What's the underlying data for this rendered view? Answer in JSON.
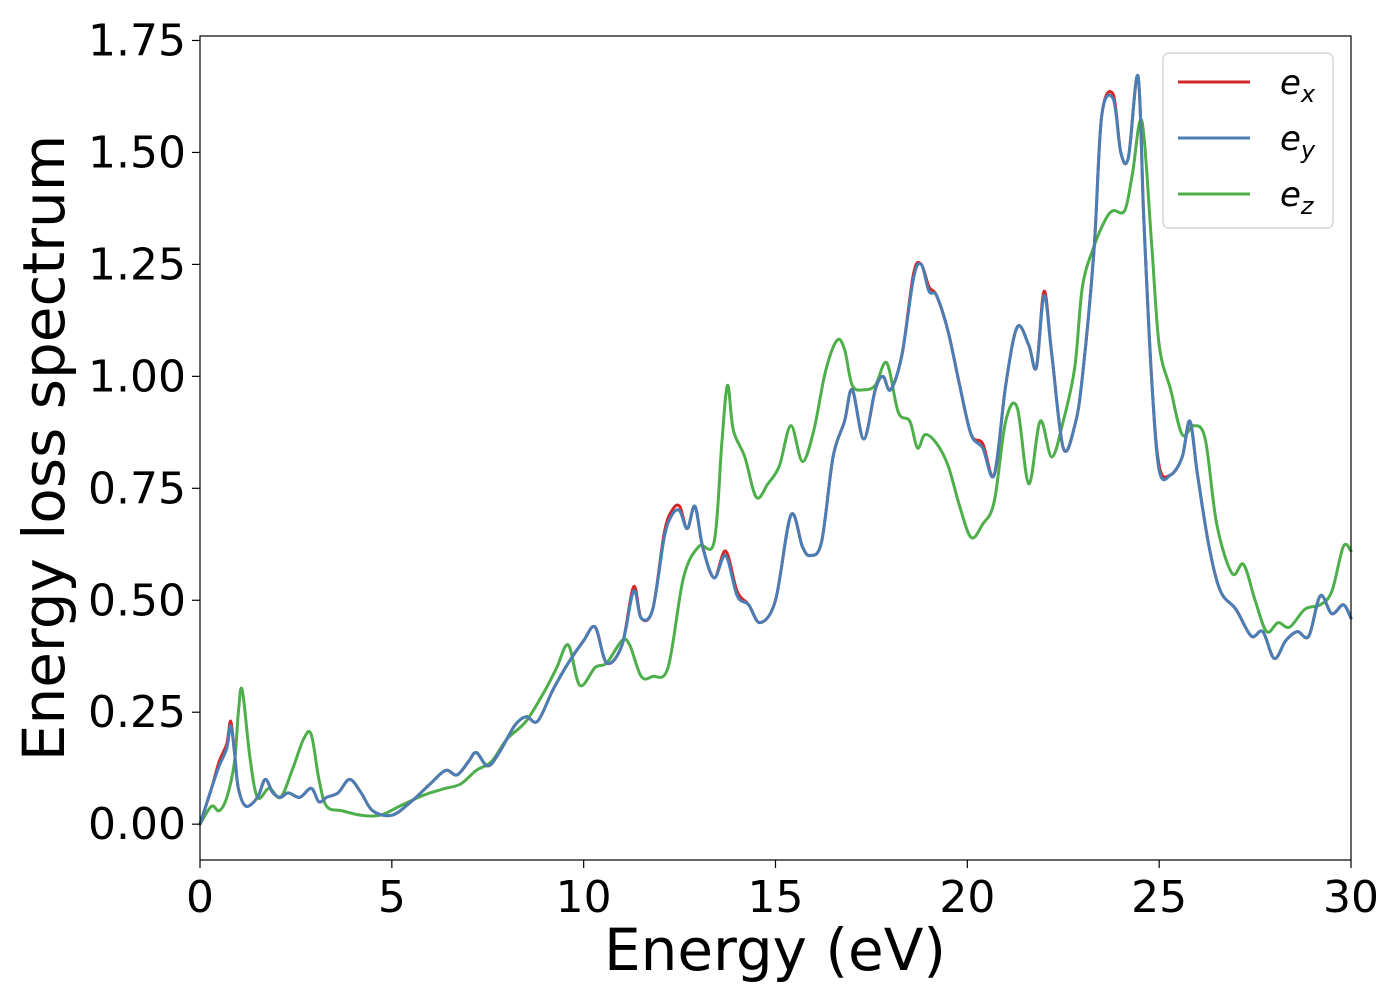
{
  "chart_data": {
    "type": "line",
    "xlabel": "Energy (eV)",
    "ylabel": "Energy loss spectrum",
    "xlim": [
      0,
      30
    ],
    "ylim": [
      -0.08,
      1.76
    ],
    "xticks": [
      0,
      5,
      10,
      15,
      20,
      25,
      30
    ],
    "yticks": [
      0.0,
      0.25,
      0.5,
      0.75,
      1.0,
      1.25,
      1.5,
      1.75
    ],
    "xtick_labels": [
      "0",
      "5",
      "10",
      "15",
      "20",
      "25",
      "30"
    ],
    "ytick_labels": [
      "0.00",
      "0.25",
      "0.50",
      "0.75",
      "1.00",
      "1.25",
      "1.50",
      "1.75"
    ],
    "grid": false,
    "legend_position": "top-right",
    "series": [
      {
        "name": "e_x",
        "label_main": "e",
        "label_sub": "x",
        "color": "#d62728",
        "x": [
          0,
          0.3,
          0.5,
          0.7,
          0.8,
          0.9,
          1.0,
          1.2,
          1.5,
          1.7,
          1.9,
          2.1,
          2.3,
          2.6,
          2.9,
          3.1,
          3.3,
          3.6,
          3.9,
          4.2,
          4.5,
          5.0,
          5.5,
          6.0,
          6.4,
          6.7,
          7.0,
          7.2,
          7.5,
          7.8,
          8.2,
          8.5,
          8.8,
          9.2,
          9.6,
          10.0,
          10.3,
          10.6,
          11.0,
          11.3,
          11.5,
          11.8,
          12.1,
          12.3,
          12.5,
          12.7,
          12.9,
          13.1,
          13.4,
          13.7,
          14.0,
          14.3,
          14.6,
          15.0,
          15.4,
          15.7,
          15.9,
          16.2,
          16.5,
          16.8,
          17.0,
          17.3,
          17.6,
          17.8,
          18.0,
          18.3,
          18.6,
          18.8,
          19.0,
          19.2,
          19.5,
          19.8,
          20.1,
          20.4,
          20.7,
          21.0,
          21.3,
          21.6,
          21.8,
          22.0,
          22.2,
          22.5,
          22.8,
          23.0,
          23.3,
          23.5,
          23.8,
          24.0,
          24.2,
          24.45,
          24.6,
          24.8,
          25.0,
          25.3,
          25.6,
          25.8,
          26.0,
          26.3,
          26.6,
          27.0,
          27.4,
          27.7,
          28.0,
          28.3,
          28.6,
          28.9,
          29.2,
          29.5,
          29.8,
          30.0
        ],
        "y": [
          0.0,
          0.08,
          0.14,
          0.18,
          0.23,
          0.16,
          0.08,
          0.04,
          0.06,
          0.1,
          0.07,
          0.06,
          0.07,
          0.06,
          0.08,
          0.05,
          0.06,
          0.07,
          0.1,
          0.07,
          0.03,
          0.02,
          0.05,
          0.09,
          0.12,
          0.11,
          0.14,
          0.16,
          0.13,
          0.16,
          0.22,
          0.24,
          0.23,
          0.3,
          0.36,
          0.41,
          0.44,
          0.36,
          0.4,
          0.53,
          0.46,
          0.48,
          0.65,
          0.7,
          0.71,
          0.66,
          0.71,
          0.62,
          0.55,
          0.61,
          0.52,
          0.49,
          0.45,
          0.5,
          0.69,
          0.62,
          0.6,
          0.63,
          0.82,
          0.9,
          0.97,
          0.86,
          0.97,
          1.0,
          0.97,
          1.05,
          1.23,
          1.25,
          1.2,
          1.18,
          1.1,
          0.98,
          0.87,
          0.85,
          0.78,
          0.98,
          1.11,
          1.07,
          1.02,
          1.19,
          1.05,
          0.84,
          0.89,
          1.0,
          1.28,
          1.58,
          1.63,
          1.5,
          1.49,
          1.67,
          1.35,
          1.0,
          0.8,
          0.78,
          0.82,
          0.9,
          0.78,
          0.62,
          0.52,
          0.48,
          0.42,
          0.43,
          0.37,
          0.41,
          0.43,
          0.42,
          0.51,
          0.47,
          0.49,
          0.46
        ]
      },
      {
        "name": "e_y",
        "label_main": "e",
        "label_sub": "y",
        "color": "#4a7fb5",
        "x": [
          0,
          0.3,
          0.5,
          0.7,
          0.8,
          0.9,
          1.0,
          1.2,
          1.5,
          1.7,
          1.9,
          2.1,
          2.3,
          2.6,
          2.9,
          3.1,
          3.3,
          3.6,
          3.9,
          4.2,
          4.5,
          5.0,
          5.5,
          6.0,
          6.4,
          6.7,
          7.0,
          7.2,
          7.5,
          7.8,
          8.2,
          8.5,
          8.8,
          9.2,
          9.6,
          10.0,
          10.3,
          10.6,
          11.0,
          11.3,
          11.5,
          11.8,
          12.1,
          12.3,
          12.5,
          12.7,
          12.9,
          13.1,
          13.4,
          13.7,
          14.0,
          14.3,
          14.6,
          15.0,
          15.4,
          15.7,
          15.9,
          16.2,
          16.5,
          16.8,
          17.0,
          17.3,
          17.6,
          17.8,
          18.0,
          18.3,
          18.6,
          18.8,
          19.0,
          19.2,
          19.5,
          19.8,
          20.1,
          20.4,
          20.7,
          21.0,
          21.3,
          21.6,
          21.8,
          22.0,
          22.2,
          22.5,
          22.8,
          23.0,
          23.3,
          23.5,
          23.8,
          24.0,
          24.2,
          24.45,
          24.6,
          24.8,
          25.0,
          25.3,
          25.6,
          25.8,
          26.0,
          26.3,
          26.6,
          27.0,
          27.4,
          27.7,
          28.0,
          28.3,
          28.6,
          28.9,
          29.2,
          29.5,
          29.8,
          30.0
        ],
        "y": [
          0.0,
          0.08,
          0.13,
          0.17,
          0.22,
          0.16,
          0.08,
          0.04,
          0.06,
          0.1,
          0.07,
          0.06,
          0.07,
          0.06,
          0.08,
          0.05,
          0.06,
          0.07,
          0.1,
          0.07,
          0.03,
          0.02,
          0.05,
          0.09,
          0.12,
          0.11,
          0.14,
          0.16,
          0.13,
          0.16,
          0.22,
          0.24,
          0.23,
          0.3,
          0.36,
          0.41,
          0.44,
          0.36,
          0.4,
          0.52,
          0.46,
          0.48,
          0.64,
          0.69,
          0.7,
          0.66,
          0.71,
          0.62,
          0.55,
          0.6,
          0.51,
          0.49,
          0.45,
          0.5,
          0.69,
          0.62,
          0.6,
          0.63,
          0.82,
          0.9,
          0.97,
          0.86,
          0.97,
          1.0,
          0.97,
          1.05,
          1.22,
          1.25,
          1.19,
          1.18,
          1.1,
          0.98,
          0.87,
          0.84,
          0.78,
          0.98,
          1.11,
          1.07,
          1.02,
          1.18,
          1.05,
          0.84,
          0.89,
          1.0,
          1.28,
          1.58,
          1.62,
          1.5,
          1.49,
          1.67,
          1.35,
          1.0,
          0.79,
          0.78,
          0.82,
          0.9,
          0.78,
          0.62,
          0.52,
          0.48,
          0.42,
          0.43,
          0.37,
          0.41,
          0.43,
          0.42,
          0.51,
          0.47,
          0.49,
          0.46
        ]
      },
      {
        "name": "e_z",
        "label_main": "e",
        "label_sub": "z",
        "color": "#4daf4a",
        "x": [
          0,
          0.3,
          0.5,
          0.7,
          0.9,
          1.0,
          1.1,
          1.3,
          1.5,
          1.8,
          2.1,
          2.4,
          2.7,
          2.9,
          3.1,
          3.3,
          3.7,
          4.2,
          4.7,
          5.2,
          5.7,
          6.0,
          6.4,
          6.8,
          7.2,
          7.6,
          8.0,
          8.5,
          9.0,
          9.3,
          9.6,
          9.9,
          10.3,
          10.6,
          11.0,
          11.2,
          11.5,
          11.8,
          12.2,
          12.6,
          13.0,
          13.4,
          13.6,
          13.75,
          13.9,
          14.2,
          14.5,
          14.8,
          15.1,
          15.4,
          15.7,
          16.0,
          16.3,
          16.6,
          16.8,
          17.0,
          17.3,
          17.6,
          17.9,
          18.2,
          18.5,
          18.7,
          18.9,
          19.2,
          19.5,
          19.8,
          20.1,
          20.4,
          20.7,
          21.0,
          21.3,
          21.6,
          21.9,
          22.2,
          22.5,
          22.8,
          23.0,
          23.3,
          23.6,
          23.8,
          24.1,
          24.3,
          24.55,
          24.8,
          25.0,
          25.3,
          25.6,
          25.9,
          26.2,
          26.5,
          26.9,
          27.2,
          27.5,
          27.8,
          28.1,
          28.4,
          28.8,
          29.2,
          29.5,
          29.8,
          30.0
        ],
        "y": [
          0.0,
          0.04,
          0.03,
          0.06,
          0.14,
          0.25,
          0.3,
          0.15,
          0.06,
          0.08,
          0.06,
          0.12,
          0.19,
          0.2,
          0.1,
          0.04,
          0.03,
          0.02,
          0.02,
          0.04,
          0.06,
          0.07,
          0.08,
          0.09,
          0.12,
          0.14,
          0.19,
          0.23,
          0.3,
          0.35,
          0.4,
          0.31,
          0.35,
          0.36,
          0.41,
          0.4,
          0.33,
          0.33,
          0.35,
          0.55,
          0.62,
          0.63,
          0.85,
          0.98,
          0.88,
          0.82,
          0.73,
          0.76,
          0.8,
          0.89,
          0.81,
          0.88,
          1.01,
          1.08,
          1.06,
          0.98,
          0.97,
          0.98,
          1.03,
          0.92,
          0.9,
          0.84,
          0.87,
          0.85,
          0.8,
          0.71,
          0.64,
          0.67,
          0.72,
          0.9,
          0.93,
          0.76,
          0.9,
          0.82,
          0.9,
          1.02,
          1.2,
          1.29,
          1.35,
          1.37,
          1.37,
          1.45,
          1.57,
          1.3,
          1.07,
          0.97,
          0.87,
          0.89,
          0.86,
          0.67,
          0.56,
          0.58,
          0.5,
          0.43,
          0.45,
          0.44,
          0.48,
          0.49,
          0.52,
          0.62,
          0.61
        ]
      }
    ]
  }
}
